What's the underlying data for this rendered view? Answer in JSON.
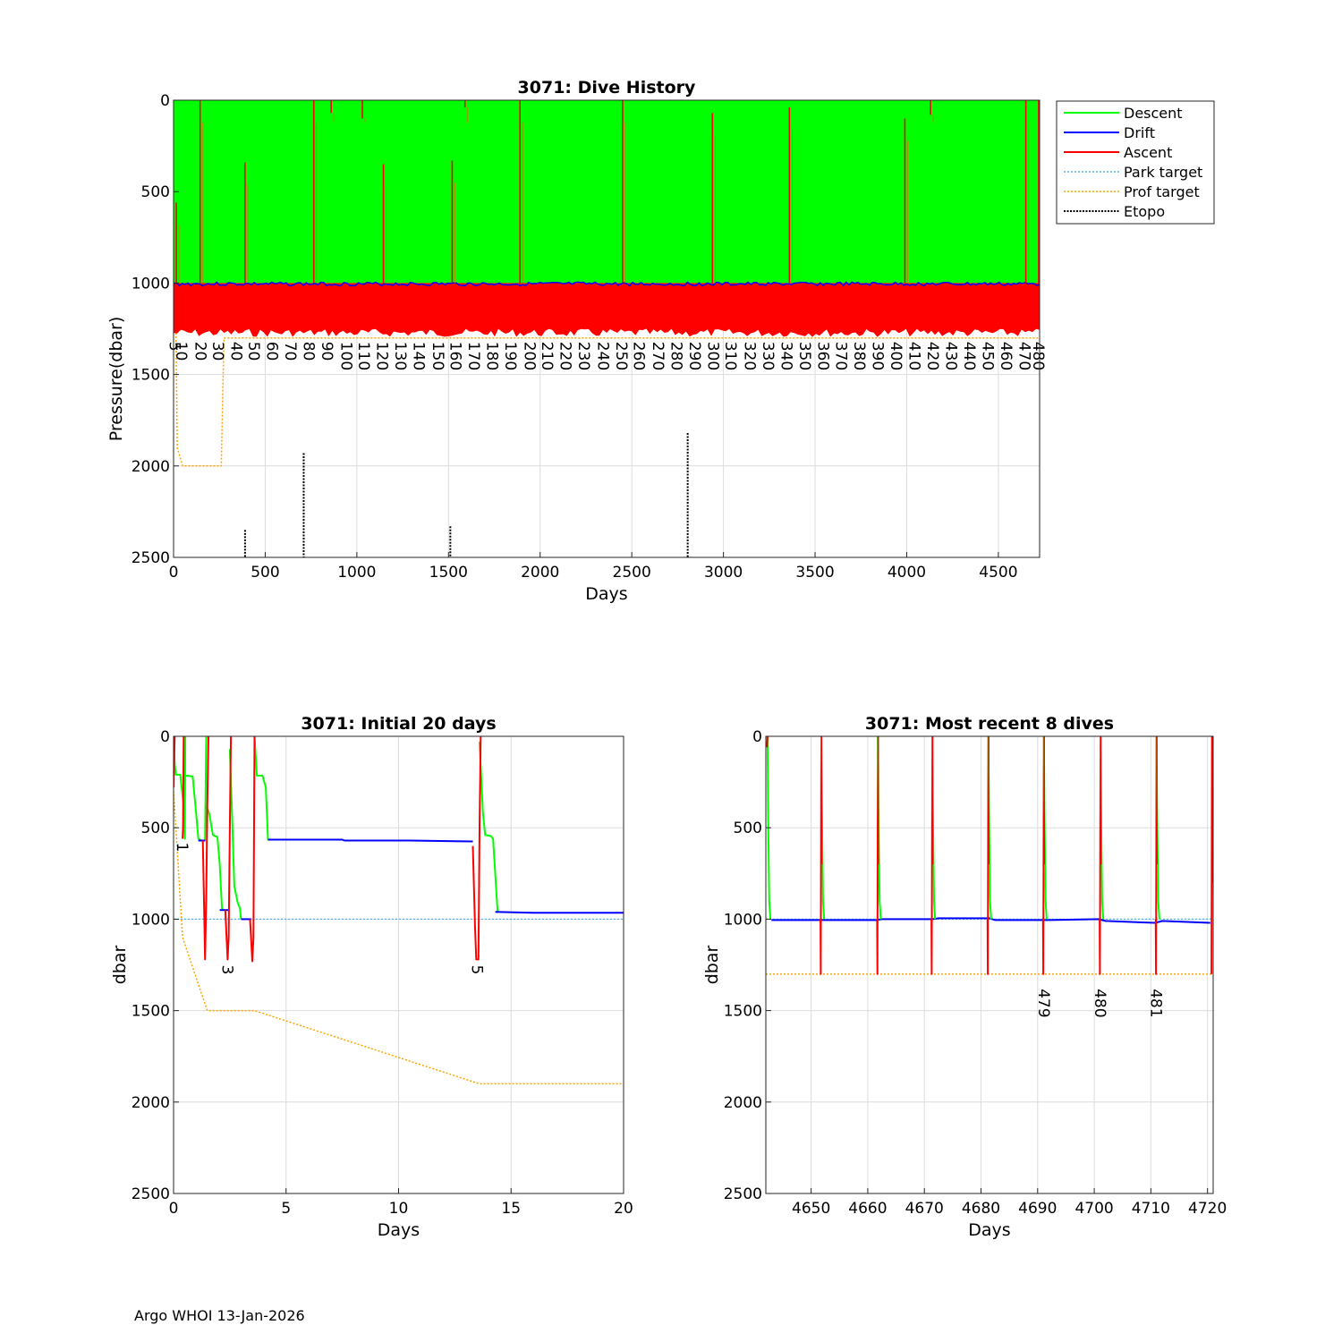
{
  "footer": "Argo WHOI 13-Jan-2026",
  "colors": {
    "descent": "#00ff00",
    "drift": "#0000ff",
    "ascent": "#ff0000",
    "park_target": "#4db8e8",
    "prof_target": "#ffa500",
    "etopo": "#000000",
    "grid": "#dcdcdc"
  },
  "chart_data": [
    {
      "id": "history",
      "type": "line",
      "title": "3071: Dive History",
      "xlabel": "Days",
      "ylabel": "Pressure(dbar)",
      "xlim": [
        0,
        4725
      ],
      "ylim": [
        0,
        2500
      ],
      "y_reversed": true,
      "grid": true,
      "legend_position": "outside-top-right",
      "xticks": [
        0,
        500,
        1000,
        1500,
        2000,
        2500,
        3000,
        3500,
        4000,
        4500
      ],
      "yticks": [
        0,
        500,
        1000,
        1500,
        2000,
        2500
      ],
      "legend": [
        "Descent",
        "Drift",
        "Ascent",
        "Park target",
        "Prof target",
        "Etopo"
      ],
      "descent_fill": {
        "x": [
          0,
          4725
        ],
        "top": 0,
        "bottom": 1000
      },
      "drift_line": {
        "x": [
          0,
          4725
        ],
        "y": 1005
      },
      "ascent_fill": {
        "x": [
          0,
          4725
        ],
        "top": 1000,
        "bottom": 1290
      },
      "ascent_spikes": [
        {
          "x": 15,
          "y0": 560,
          "y1": 1000
        },
        {
          "x": 145,
          "y0": 0,
          "y1": 1000
        },
        {
          "x": 390,
          "y0": 340,
          "y1": 1000
        },
        {
          "x": 765,
          "y0": 0,
          "y1": 1000
        },
        {
          "x": 860,
          "y0": 0,
          "y1": 70
        },
        {
          "x": 1030,
          "y0": 0,
          "y1": 100
        },
        {
          "x": 1145,
          "y0": 350,
          "y1": 1000
        },
        {
          "x": 1520,
          "y0": 330,
          "y1": 1000
        },
        {
          "x": 1590,
          "y0": 0,
          "y1": 40
        },
        {
          "x": 1890,
          "y0": 0,
          "y1": 1000
        },
        {
          "x": 2450,
          "y0": 0,
          "y1": 1000
        },
        {
          "x": 2940,
          "y0": 70,
          "y1": 1000
        },
        {
          "x": 3360,
          "y0": 40,
          "y1": 1000
        },
        {
          "x": 3990,
          "y0": 100,
          "y1": 1000
        },
        {
          "x": 4130,
          "y0": 0,
          "y1": 80
        },
        {
          "x": 4650,
          "y0": 0,
          "y1": 1000
        },
        {
          "x": 4720,
          "y0": 0,
          "y1": 1000
        }
      ],
      "prof_target": {
        "x": [
          0,
          20,
          50,
          260,
          275,
          4725
        ],
        "y": [
          0,
          1900,
          2000,
          2000,
          1300,
          1300
        ]
      },
      "etopo": [
        {
          "x": 390,
          "y0": 2350,
          "y1": 2500
        },
        {
          "x": 710,
          "y0": 1930,
          "y1": 2500
        },
        {
          "x": 1510,
          "y0": 2330,
          "y1": 2500
        },
        {
          "x": 2805,
          "y0": 1820,
          "y1": 2500
        }
      ],
      "dive_labels": [
        "5",
        "10",
        "20",
        "30",
        "40",
        "50",
        "60",
        "70",
        "80",
        "90",
        "100",
        "110",
        "120",
        "130",
        "140",
        "150",
        "160",
        "170",
        "180",
        "190",
        "200",
        "210",
        "220",
        "230",
        "240",
        "250",
        "260",
        "270",
        "280",
        "290",
        "300",
        "310",
        "320",
        "330",
        "340",
        "350",
        "360",
        "370",
        "380",
        "390",
        "400",
        "410",
        "420",
        "430",
        "440",
        "450",
        "460",
        "470",
        "480"
      ],
      "dive_label_days": [
        8,
        45,
        150,
        245,
        345,
        440,
        540,
        640,
        740,
        840,
        945,
        1040,
        1140,
        1240,
        1340,
        1445,
        1540,
        1640,
        1740,
        1840,
        1945,
        2040,
        2140,
        2240,
        2345,
        2445,
        2540,
        2645,
        2745,
        2845,
        2945,
        3040,
        3145,
        3245,
        3345,
        3445,
        3545,
        3645,
        3745,
        3845,
        3945,
        4045,
        4145,
        4245,
        4345,
        4445,
        4545,
        4645,
        4720
      ]
    },
    {
      "id": "initial",
      "type": "line",
      "title": "3071: Initial 20 days",
      "xlabel": "Days",
      "ylabel": "dbar",
      "xlim": [
        0,
        20
      ],
      "ylim": [
        0,
        2500
      ],
      "y_reversed": true,
      "grid": true,
      "xticks": [
        0,
        5,
        10,
        15,
        20
      ],
      "yticks": [
        0,
        500,
        1000,
        1500,
        2000,
        2500
      ],
      "park_target": {
        "x": [
          0,
          20
        ],
        "y": [
          1000,
          1000
        ]
      },
      "prof_target": {
        "x": [
          0,
          0.4,
          1.5,
          3.6,
          13.6,
          20
        ],
        "y": [
          300,
          1100,
          1500,
          1500,
          1900,
          1900
        ]
      },
      "descent": [
        {
          "x": [
            0,
            0.05,
            0.1,
            0.2,
            0.3,
            0.45,
            0.5,
            0.52
          ],
          "y": [
            0,
            150,
            210,
            210,
            210,
            380,
            560,
            0
          ]
        },
        {
          "x": [
            0.5,
            0.6,
            0.85,
            1.0,
            1.1,
            1.25,
            1.4,
            1.45
          ],
          "y": [
            220,
            215,
            220,
            420,
            560,
            570,
            570,
            0
          ]
        },
        {
          "x": [
            1.45,
            1.55,
            1.6,
            1.75,
            1.85,
            1.95,
            2.05,
            2.15,
            2.2
          ],
          "y": [
            380,
            410,
            430,
            540,
            545,
            550,
            700,
            940,
            950
          ]
        },
        {
          "x": [
            2.5,
            2.6,
            2.7,
            2.85,
            2.95,
            3.0
          ],
          "y": [
            70,
            430,
            820,
            910,
            940,
            1000
          ]
        },
        {
          "x": [
            3.6,
            3.7,
            3.95,
            4.1,
            4.2
          ],
          "y": [
            0,
            215,
            215,
            280,
            570
          ]
        },
        {
          "x": [
            13.6,
            13.75,
            13.85,
            14.1,
            14.2,
            14.4
          ],
          "y": [
            30,
            420,
            540,
            545,
            560,
            960
          ]
        }
      ],
      "drift": [
        {
          "x": [
            1.1,
            1.4
          ],
          "y": [
            570,
            570
          ]
        },
        {
          "x": [
            2.05,
            2.45
          ],
          "y": [
            950,
            950
          ]
        },
        {
          "x": [
            3.0,
            3.45
          ],
          "y": [
            1000,
            1000
          ]
        },
        {
          "x": [
            4.2,
            7.5,
            7.6,
            10.5,
            13.3
          ],
          "y": [
            565,
            565,
            570,
            570,
            575
          ]
        },
        {
          "x": [
            14.3,
            16.0,
            20.0
          ],
          "y": [
            960,
            965,
            965
          ]
        }
      ],
      "ascent": [
        {
          "x": [
            0.0,
            0.02,
            0.05
          ],
          "y": [
            280,
            150,
            0
          ]
        },
        {
          "x": [
            0.4,
            0.42,
            0.45
          ],
          "y": [
            560,
            500,
            0
          ]
        },
        {
          "x": [
            1.3,
            1.35,
            1.4,
            1.45,
            1.5,
            1.55
          ],
          "y": [
            570,
            900,
            1220,
            900,
            380,
            0
          ]
        },
        {
          "x": [
            2.3,
            2.4,
            2.45,
            2.5,
            2.55
          ],
          "y": [
            950,
            1220,
            1100,
            500,
            0
          ]
        },
        {
          "x": [
            3.4,
            3.5,
            3.55,
            3.6
          ],
          "y": [
            1000,
            1230,
            1100,
            0
          ]
        },
        {
          "x": [
            13.3,
            13.4,
            13.45,
            13.55,
            13.6,
            13.65
          ],
          "y": [
            600,
            1050,
            1220,
            1220,
            500,
            0
          ]
        }
      ],
      "dive_labels": [
        {
          "text": "1",
          "x": 0.4,
          "y": 580
        },
        {
          "text": "3",
          "x": 2.4,
          "y": 1250
        },
        {
          "text": "5",
          "x": 13.5,
          "y": 1250
        }
      ]
    },
    {
      "id": "recent",
      "type": "line",
      "title": "3071: Most recent 8 dives",
      "xlabel": "Days",
      "ylabel": "dbar",
      "xlim": [
        4642,
        4721
      ],
      "ylim": [
        0,
        2500
      ],
      "y_reversed": true,
      "grid": true,
      "xticks": [
        4650,
        4660,
        4670,
        4680,
        4690,
        4700,
        4710,
        4720
      ],
      "yticks": [
        0,
        500,
        1000,
        1500,
        2000,
        2500
      ],
      "park_target": {
        "x": [
          4642,
          4721
        ],
        "y": [
          1000,
          1000
        ]
      },
      "prof_target": {
        "x": [
          4642,
          4721
        ],
        "y": [
          1300,
          1300
        ]
      },
      "drift": {
        "x": [
          4643,
          4651.5,
          4652.5,
          4661.5,
          4662.5,
          4671.5,
          4672.5,
          4681.5,
          4682.5,
          4690.8,
          4692,
          4700.8,
          4702,
          4710.8,
          4712,
          4720.5
        ],
        "y": [
          1005,
          1005,
          1005,
          1005,
          1000,
          1000,
          995,
          995,
          1005,
          1005,
          1005,
          1000,
          1010,
          1020,
          1010,
          1020
        ]
      },
      "cycles": [
        4642.3,
        4651.8,
        4661.8,
        4671.4,
        4681.3,
        4691.1,
        4701.1,
        4711.0
      ],
      "final_ascent_x": 4720.8,
      "dive_labels": [
        {
          "text": "479",
          "x": 4691.1,
          "y": 1380
        },
        {
          "text": "480",
          "x": 4701.1,
          "y": 1380
        },
        {
          "text": "481",
          "x": 4711.0,
          "y": 1380
        }
      ]
    }
  ]
}
